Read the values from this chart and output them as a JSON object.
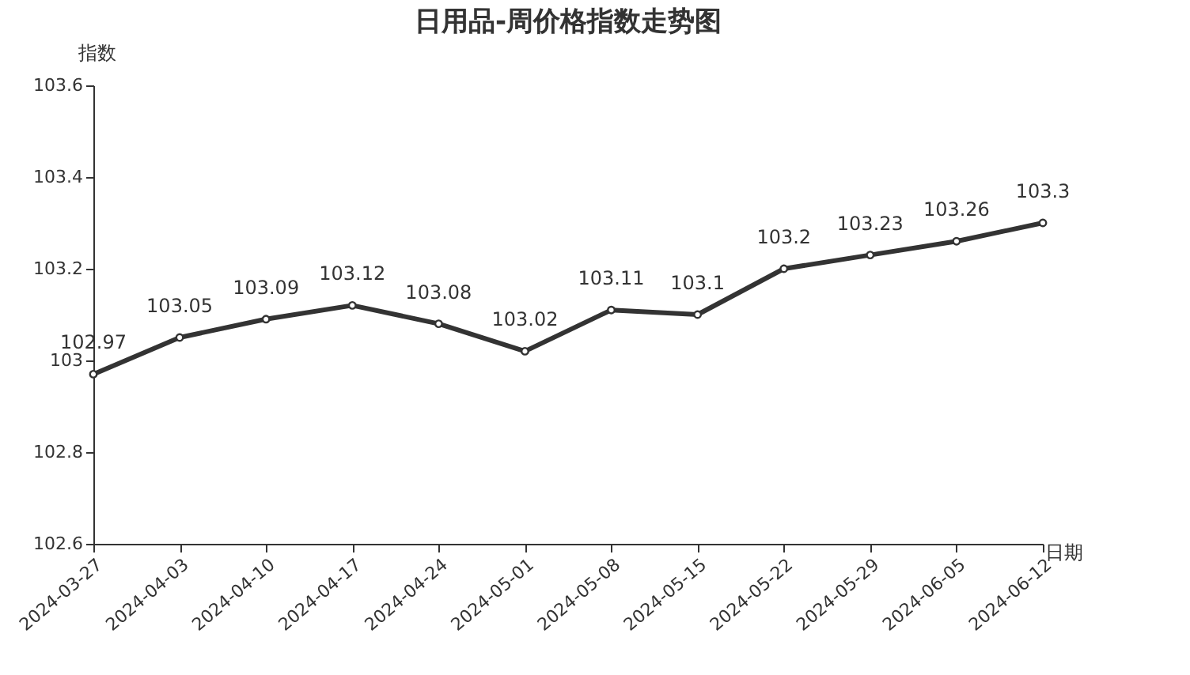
{
  "chart_data": {
    "type": "line",
    "title": "日用品-周价格指数走势图",
    "xlabel": "日期",
    "ylabel": "指数",
    "categories": [
      "2024-03-27",
      "2024-04-03",
      "2024-04-10",
      "2024-04-17",
      "2024-04-24",
      "2024-05-01",
      "2024-05-08",
      "2024-05-15",
      "2024-05-22",
      "2024-05-29",
      "2024-06-05",
      "2024-06-12"
    ],
    "series": [
      {
        "color": "#333333",
        "values": [
          102.97,
          103.05,
          103.09,
          103.12,
          103.08,
          103.02,
          103.11,
          103.1,
          103.2,
          103.23,
          103.26,
          103.3
        ]
      }
    ],
    "ylim": [
      102.6,
      103.6
    ],
    "yticks": [
      102.6,
      102.8,
      {
        "value": 103,
        "label": "103"
      },
      103.2,
      103.4,
      103.6
    ],
    "data_labels": true,
    "marker": "circle",
    "grid": false,
    "legend": false,
    "line_style": "solid"
  }
}
